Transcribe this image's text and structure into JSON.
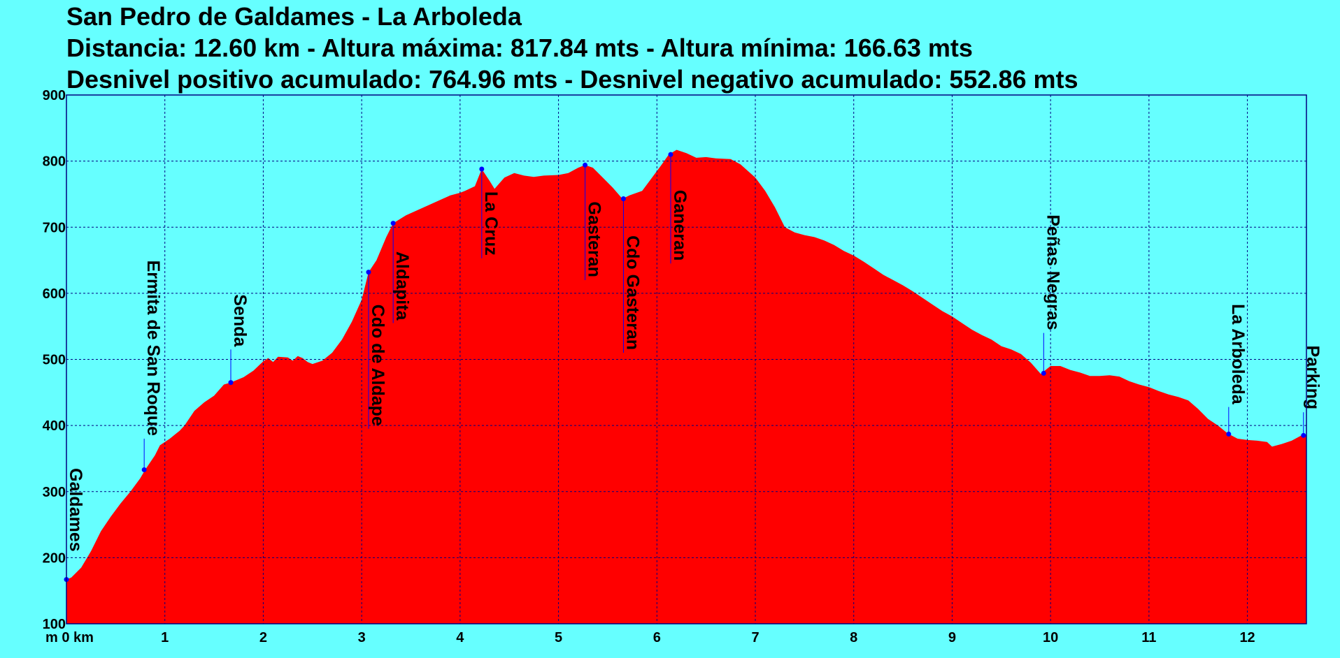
{
  "titles": {
    "line1": "San Pedro de Galdames - La Arboleda",
    "line2": "Distancia: 12.60 km - Altura máxima: 817.84 mts - Altura mínima: 166.63 mts",
    "line3": "Desnivel positivo acumulado: 764.96 mts - Desnivel negativo acumulado: 552.86 mts"
  },
  "chart_data": {
    "type": "area",
    "title": "San Pedro de Galdames - La Arboleda",
    "xlabel": "km",
    "ylabel": "m",
    "xlim": [
      0,
      12.6
    ],
    "ylim": [
      100,
      900
    ],
    "grid": true,
    "x_ticks": [
      {
        "value": 0,
        "label": "0 km"
      },
      {
        "value": 1,
        "label": "1"
      },
      {
        "value": 2,
        "label": "2"
      },
      {
        "value": 3,
        "label": "3"
      },
      {
        "value": 4,
        "label": "4"
      },
      {
        "value": 5,
        "label": "5"
      },
      {
        "value": 6,
        "label": "6"
      },
      {
        "value": 7,
        "label": "7"
      },
      {
        "value": 8,
        "label": "8"
      },
      {
        "value": 9,
        "label": "9"
      },
      {
        "value": 10,
        "label": "10"
      },
      {
        "value": 11,
        "label": "11"
      },
      {
        "value": 12,
        "label": "12"
      }
    ],
    "y_ticks": [
      100,
      200,
      300,
      400,
      500,
      600,
      700,
      800,
      900
    ],
    "y_unit_label": "m",
    "colors": {
      "fill": "#ff0000",
      "grid": "#000080",
      "marker": "#0000ff",
      "background": "#66ffff"
    },
    "profile": [
      [
        0,
        167
      ],
      [
        0.05,
        170
      ],
      [
        0.15,
        185
      ],
      [
        0.25,
        210
      ],
      [
        0.35,
        240
      ],
      [
        0.45,
        262
      ],
      [
        0.55,
        282
      ],
      [
        0.65,
        300
      ],
      [
        0.75,
        320
      ],
      [
        0.8,
        333
      ],
      [
        0.9,
        355
      ],
      [
        0.95,
        370
      ],
      [
        1.05,
        380
      ],
      [
        1.15,
        392
      ],
      [
        1.2,
        400
      ],
      [
        1.3,
        422
      ],
      [
        1.4,
        435
      ],
      [
        1.5,
        445
      ],
      [
        1.6,
        462
      ],
      [
        1.67,
        465
      ],
      [
        1.8,
        473
      ],
      [
        1.9,
        483
      ],
      [
        2.0,
        497
      ],
      [
        2.05,
        502
      ],
      [
        2.1,
        496
      ],
      [
        2.15,
        504
      ],
      [
        2.25,
        503
      ],
      [
        2.3,
        498
      ],
      [
        2.35,
        505
      ],
      [
        2.4,
        502
      ],
      [
        2.45,
        496
      ],
      [
        2.5,
        493
      ],
      [
        2.6,
        498
      ],
      [
        2.7,
        510
      ],
      [
        2.8,
        530
      ],
      [
        2.9,
        557
      ],
      [
        3.0,
        590
      ],
      [
        3.07,
        632
      ],
      [
        3.15,
        650
      ],
      [
        3.25,
        685
      ],
      [
        3.32,
        706
      ],
      [
        3.45,
        718
      ],
      [
        3.6,
        728
      ],
      [
        3.75,
        738
      ],
      [
        3.9,
        748
      ],
      [
        4.0,
        752
      ],
      [
        4.05,
        755
      ],
      [
        4.15,
        762
      ],
      [
        4.22,
        788
      ],
      [
        4.3,
        770
      ],
      [
        4.35,
        758
      ],
      [
        4.45,
        775
      ],
      [
        4.55,
        782
      ],
      [
        4.65,
        778
      ],
      [
        4.75,
        776
      ],
      [
        4.85,
        778
      ],
      [
        5.0,
        779
      ],
      [
        5.1,
        782
      ],
      [
        5.2,
        790
      ],
      [
        5.27,
        794
      ],
      [
        5.35,
        790
      ],
      [
        5.45,
        775
      ],
      [
        5.55,
        760
      ],
      [
        5.65,
        743
      ],
      [
        5.72,
        748
      ],
      [
        5.85,
        755
      ],
      [
        5.95,
        775
      ],
      [
        6.05,
        795
      ],
      [
        6.12,
        810
      ],
      [
        6.2,
        817
      ],
      [
        6.3,
        812
      ],
      [
        6.4,
        805
      ],
      [
        6.5,
        806
      ],
      [
        6.6,
        804
      ],
      [
        6.75,
        803
      ],
      [
        6.85,
        795
      ],
      [
        7.0,
        775
      ],
      [
        7.1,
        755
      ],
      [
        7.2,
        730
      ],
      [
        7.3,
        700
      ],
      [
        7.4,
        692
      ],
      [
        7.5,
        688
      ],
      [
        7.6,
        685
      ],
      [
        7.7,
        680
      ],
      [
        7.8,
        673
      ],
      [
        7.9,
        664
      ],
      [
        8.0,
        657
      ],
      [
        8.1,
        648
      ],
      [
        8.2,
        638
      ],
      [
        8.3,
        628
      ],
      [
        8.4,
        620
      ],
      [
        8.5,
        612
      ],
      [
        8.6,
        603
      ],
      [
        8.7,
        593
      ],
      [
        8.8,
        583
      ],
      [
        8.9,
        573
      ],
      [
        9.0,
        565
      ],
      [
        9.1,
        555
      ],
      [
        9.2,
        545
      ],
      [
        9.3,
        537
      ],
      [
        9.4,
        530
      ],
      [
        9.5,
        520
      ],
      [
        9.6,
        515
      ],
      [
        9.7,
        508
      ],
      [
        9.8,
        495
      ],
      [
        9.9,
        478
      ],
      [
        10.0,
        490
      ],
      [
        10.1,
        490
      ],
      [
        10.2,
        484
      ],
      [
        10.3,
        480
      ],
      [
        10.4,
        475
      ],
      [
        10.5,
        475
      ],
      [
        10.6,
        476
      ],
      [
        10.7,
        474
      ],
      [
        10.8,
        467
      ],
      [
        10.9,
        462
      ],
      [
        11.0,
        458
      ],
      [
        11.1,
        452
      ],
      [
        11.2,
        447
      ],
      [
        11.3,
        443
      ],
      [
        11.4,
        438
      ],
      [
        11.5,
        425
      ],
      [
        11.6,
        410
      ],
      [
        11.7,
        400
      ],
      [
        11.8,
        388
      ],
      [
        11.9,
        380
      ],
      [
        12.0,
        378
      ],
      [
        12.1,
        377
      ],
      [
        12.2,
        375
      ],
      [
        12.25,
        368
      ],
      [
        12.35,
        372
      ],
      [
        12.45,
        377
      ],
      [
        12.55,
        385
      ],
      [
        12.6,
        385
      ]
    ],
    "waypoints": [
      {
        "label": "Galdames",
        "x": 0.0,
        "y": 167,
        "label_end": 205
      },
      {
        "label": "Ermita de San Roque",
        "x": 0.79,
        "y": 333,
        "label_end": 380
      },
      {
        "label": "Senda",
        "x": 1.67,
        "y": 465,
        "label_end": 515
      },
      {
        "label": "Cdo de Aldape",
        "x": 3.07,
        "y": 632,
        "label_end": 395
      },
      {
        "label": "Aldapita",
        "x": 3.32,
        "y": 706,
        "label_end": 555
      },
      {
        "label": "La Cruz",
        "x": 4.22,
        "y": 788,
        "label_end": 653
      },
      {
        "label": "Gasteran",
        "x": 5.27,
        "y": 794,
        "label_end": 620
      },
      {
        "label": "Cdo Gasteran",
        "x": 5.66,
        "y": 743,
        "label_end": 510
      },
      {
        "label": "Ganeran",
        "x": 6.14,
        "y": 810,
        "label_end": 645
      },
      {
        "label": "Peñas Negras",
        "x": 9.93,
        "y": 479,
        "label_end": 540
      },
      {
        "label": "La Arboleda",
        "x": 11.81,
        "y": 387,
        "label_end": 428
      },
      {
        "label": "Parking",
        "x": 12.57,
        "y": 385,
        "label_end": 420
      }
    ]
  }
}
